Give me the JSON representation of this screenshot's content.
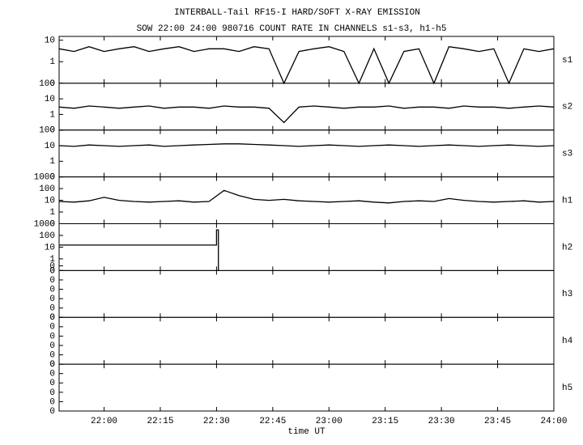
{
  "header": {
    "title": "INTERBALL-Tail RF15-I HARD/SOFT X-RAY EMISSION",
    "subtitle": "SOW 22:00 24:00 980716  COUNT RATE IN CHANNELS s1-s3, h1-h5"
  },
  "chart_data": [
    {
      "type": "line",
      "label": "s1",
      "log": true,
      "ylim": [
        0.1,
        15
      ],
      "yticks": [
        {
          "value": 0.1,
          "label": "0"
        },
        1,
        10
      ],
      "x": [
        -12,
        -8,
        -4,
        0,
        4,
        8,
        12,
        16,
        20,
        24,
        28,
        32,
        36,
        40,
        44,
        48,
        52,
        56,
        60,
        64,
        68,
        72,
        76,
        80,
        84,
        88,
        92,
        96,
        100,
        104,
        108,
        112,
        116,
        120
      ],
      "values": [
        4,
        3,
        5,
        3,
        4,
        5,
        3,
        4,
        5,
        3,
        4,
        4,
        3,
        5,
        4,
        0.1,
        3,
        4,
        5,
        3,
        0.1,
        4,
        0.1,
        3,
        4,
        0.1,
        5,
        4,
        3,
        4,
        0.1,
        4,
        3,
        4
      ]
    },
    {
      "type": "line",
      "label": "s2",
      "log": true,
      "ylim": [
        0.1,
        100
      ],
      "yticks": [
        {
          "value": 0.1,
          "label": "0"
        },
        1,
        10,
        100
      ],
      "x": [
        -12,
        -8,
        -4,
        0,
        4,
        8,
        12,
        16,
        20,
        24,
        28,
        32,
        36,
        40,
        44,
        48,
        52,
        56,
        60,
        64,
        68,
        72,
        76,
        80,
        84,
        88,
        92,
        96,
        100,
        104,
        108,
        112,
        116,
        120
      ],
      "values": [
        3,
        2.5,
        3.5,
        3,
        2.5,
        3,
        3.5,
        2.5,
        3,
        3,
        2.5,
        3.5,
        3,
        3,
        2.5,
        0.3,
        3,
        3.5,
        3,
        2.5,
        3,
        3,
        3.5,
        2.5,
        3,
        3,
        2.5,
        3.5,
        3,
        3,
        2.5,
        3,
        3.5,
        3
      ]
    },
    {
      "type": "line",
      "label": "s3",
      "log": true,
      "ylim": [
        0.1,
        100
      ],
      "yticks": [
        {
          "value": 0.1,
          "label": "0"
        },
        1,
        10,
        100
      ],
      "x": [
        -12,
        -8,
        -4,
        0,
        4,
        8,
        12,
        16,
        20,
        24,
        28,
        32,
        36,
        40,
        44,
        48,
        52,
        56,
        60,
        64,
        68,
        72,
        76,
        80,
        84,
        88,
        92,
        96,
        100,
        104,
        108,
        112,
        116,
        120
      ],
      "values": [
        10,
        9,
        11,
        10,
        9,
        10,
        11,
        9,
        10,
        11,
        12,
        13,
        13,
        12,
        11,
        10,
        9,
        10,
        11,
        10,
        9,
        10,
        11,
        10,
        9,
        10,
        11,
        10,
        9,
        10,
        11,
        10,
        9,
        10
      ]
    },
    {
      "type": "line",
      "label": "h1",
      "log": true,
      "ylim": [
        0.1,
        1000
      ],
      "yticks": [
        {
          "value": 0.1,
          "label": "0"
        },
        1,
        10,
        100,
        1000
      ],
      "x": [
        -12,
        -8,
        -4,
        0,
        4,
        8,
        12,
        16,
        20,
        24,
        28,
        32,
        36,
        40,
        44,
        48,
        52,
        56,
        60,
        64,
        68,
        72,
        76,
        80,
        84,
        88,
        92,
        96,
        100,
        104,
        108,
        112,
        116,
        120
      ],
      "values": [
        8,
        7,
        9,
        18,
        10,
        8,
        7,
        8,
        9,
        7,
        8,
        70,
        25,
        12,
        10,
        12,
        9,
        8,
        7,
        8,
        9,
        7,
        6,
        8,
        9,
        8,
        14,
        10,
        8,
        7,
        8,
        9,
        7,
        8
      ]
    },
    {
      "type": "line",
      "label": "h2",
      "log": true,
      "ylim": [
        0.1,
        1000
      ],
      "yticks": [
        {
          "value": 0.1,
          "label": "0"
        },
        {
          "value": 0.25,
          "label": "0"
        },
        1,
        10,
        100,
        1000
      ],
      "x": [
        -12,
        30,
        30,
        30.5,
        30.5
      ],
      "values": [
        15,
        15,
        300,
        300,
        0.1
      ]
    },
    {
      "type": "line",
      "label": "h3",
      "log": false,
      "ylim": [
        0,
        1
      ],
      "yticks": [
        {
          "value": 0,
          "label": "0"
        },
        {
          "value": 0.2,
          "label": "0"
        },
        {
          "value": 0.4,
          "label": "0"
        },
        {
          "value": 0.6,
          "label": "0"
        },
        {
          "value": 0.8,
          "label": "0"
        },
        {
          "value": 1,
          "label": "0"
        }
      ]
    },
    {
      "type": "line",
      "label": "h4",
      "log": false,
      "ylim": [
        0,
        1
      ],
      "yticks": [
        {
          "value": 0,
          "label": "0"
        },
        {
          "value": 0.2,
          "label": "0"
        },
        {
          "value": 0.4,
          "label": "0"
        },
        {
          "value": 0.6,
          "label": "0"
        },
        {
          "value": 0.8,
          "label": "0"
        },
        {
          "value": 1,
          "label": "0"
        }
      ]
    },
    {
      "type": "line",
      "label": "h5",
      "log": false,
      "ylim": [
        0,
        1
      ],
      "yticks": [
        {
          "value": 0,
          "label": "0"
        },
        {
          "value": 0.2,
          "label": "0"
        },
        {
          "value": 0.4,
          "label": "0"
        },
        {
          "value": 0.6,
          "label": "0"
        },
        {
          "value": 0.8,
          "label": "0"
        },
        {
          "value": 1,
          "label": "0"
        }
      ],
      "xlim": [
        -12,
        120
      ],
      "x_label": "time UT",
      "xticks": [
        {
          "value": 0,
          "label": "22:00"
        },
        {
          "value": 15,
          "label": "22:15"
        },
        {
          "value": 30,
          "label": "22:30"
        },
        {
          "value": 45,
          "label": "22:45"
        },
        {
          "value": 60,
          "label": "23:00"
        },
        {
          "value": 75,
          "label": "23:15"
        },
        {
          "value": 90,
          "label": "23:30"
        },
        {
          "value": 105,
          "label": "23:45"
        },
        {
          "value": 120,
          "label": "24:00"
        }
      ]
    }
  ]
}
